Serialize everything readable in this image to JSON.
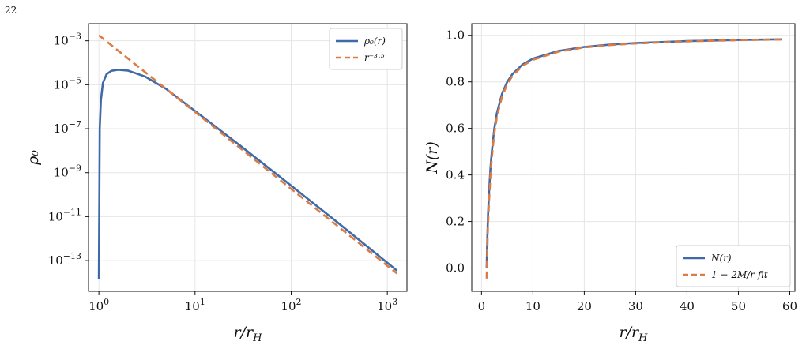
{
  "page_number": "22",
  "colors": {
    "series_solid": "#3f6aa9",
    "series_dashed": "#dc7c45",
    "grid": "#e6e6e6"
  },
  "chart_data": [
    {
      "type": "line",
      "title": "",
      "xlabel": "r/r_H",
      "ylabel": "ρ₀",
      "xscale": "log",
      "yscale": "log",
      "xlim": [
        0.78,
        1600
      ],
      "ylim": [
        4e-15,
        0.006
      ],
      "xticks": [
        {
          "value": 1,
          "label": "10⁰"
        },
        {
          "value": 10,
          "label": "10¹"
        },
        {
          "value": 100,
          "label": "10²"
        },
        {
          "value": 1000,
          "label": "10³"
        }
      ],
      "yticks": [
        {
          "value": 1e-13,
          "label": "10⁻¹³"
        },
        {
          "value": 1e-11,
          "label": "10⁻¹¹"
        },
        {
          "value": 1e-09,
          "label": "10⁻⁹"
        },
        {
          "value": 1e-07,
          "label": "10⁻⁷"
        },
        {
          "value": 1e-05,
          "label": "10⁻⁵"
        },
        {
          "value": 0.001,
          "label": "10⁻³"
        }
      ],
      "grid": true,
      "legend_position": "top-right",
      "series": [
        {
          "name": "ρ₀(r)",
          "style": "solid",
          "x": [
            1.0,
            1.02,
            1.05,
            1.1,
            1.2,
            1.35,
            1.6,
            2,
            3,
            5,
            10,
            30,
            100,
            300,
            1260
          ],
          "y": [
            1.5e-14,
            1e-07,
            2e-06,
            1.2e-05,
            3e-05,
            4.3e-05,
            4.8e-05,
            4.4e-05,
            2.4e-05,
            6.5e-06,
            6.4e-07,
            1.6e-08,
            2.55e-10,
            5.7e-12,
            3.5e-14
          ]
        },
        {
          "name": "r⁻³·⁵",
          "style": "dashed",
          "x": [
            1.0,
            1260
          ],
          "y": [
            0.0018,
            2.6e-14
          ]
        }
      ]
    },
    {
      "type": "line",
      "title": "",
      "xlabel": "r/r_H",
      "ylabel": "N(r)",
      "xlim": [
        -1.9,
        61
      ],
      "ylim": [
        -0.1,
        1.05
      ],
      "xticks": [
        0,
        10,
        20,
        30,
        40,
        50,
        60
      ],
      "yticks": [
        0.0,
        0.2,
        0.4,
        0.6,
        0.8,
        1.0
      ],
      "grid": true,
      "legend_position": "bottom-right",
      "series": [
        {
          "name": "N(r)",
          "style": "solid",
          "x": [
            1.0,
            1.1,
            1.25,
            1.5,
            1.75,
            2,
            2.5,
            3,
            4,
            5,
            6,
            8,
            10,
            15,
            20,
            25,
            30,
            40,
            50,
            58.5
          ],
          "y": [
            0.0,
            0.1,
            0.22,
            0.34,
            0.43,
            0.5,
            0.6,
            0.667,
            0.75,
            0.8,
            0.833,
            0.875,
            0.9,
            0.933,
            0.95,
            0.96,
            0.967,
            0.975,
            0.98,
            0.983
          ]
        },
        {
          "name": "1 − 2M/r fit",
          "style": "dashed",
          "x": [
            1.0,
            1.1,
            1.25,
            1.5,
            1.75,
            2,
            2.5,
            3,
            4,
            5,
            6,
            8,
            10,
            15,
            20,
            25,
            30,
            40,
            50,
            58.5
          ],
          "y": [
            -0.045,
            0.05,
            0.18,
            0.3,
            0.4,
            0.475,
            0.58,
            0.65,
            0.738,
            0.79,
            0.825,
            0.869,
            0.895,
            0.93,
            0.948,
            0.958,
            0.965,
            0.974,
            0.979,
            0.982
          ]
        }
      ]
    }
  ]
}
